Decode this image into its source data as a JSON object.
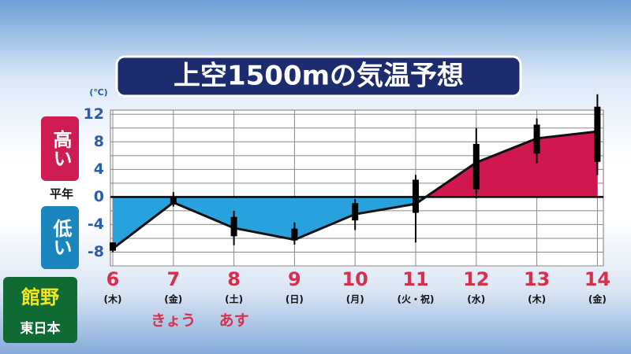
{
  "chart_data": {
    "type": "line",
    "title": "上空1500mの気温予想",
    "y_unit": "(℃)",
    "high_label": "高い",
    "normal_label": "平年",
    "low_label": "低い",
    "station": "館野",
    "region": "東日本",
    "categories": [
      "6",
      "7",
      "8",
      "9",
      "10",
      "11",
      "12",
      "13",
      "14"
    ],
    "weekdays": [
      "(木)",
      "(金)",
      "(土)",
      "(日)",
      "(月)",
      "(火・祝)",
      "(水)",
      "(木)",
      "(金)"
    ],
    "day_notes": [
      null,
      "きょう",
      "あす",
      null,
      null,
      null,
      null,
      null,
      null
    ],
    "values": [
      -7.5,
      -0.8,
      -4.5,
      -6.2,
      -2.5,
      -1,
      5,
      8.5,
      9.5
    ],
    "range_low": [
      -8,
      -1.4,
      -7,
      -6.9,
      -4.8,
      -6.6,
      -0.2,
      4.9,
      3.2
    ],
    "range_high": [
      -6.6,
      0.7,
      -2,
      -3.7,
      -0.3,
      3.2,
      10,
      11.4,
      14.9
    ],
    "box_low": [
      -7.8,
      -1.1,
      -5.7,
      -6.3,
      -3.4,
      -2.3,
      1.1,
      6.3,
      5.1
    ],
    "box_high": [
      -6.6,
      0,
      -2.9,
      -4.6,
      -0.9,
      2.5,
      7.7,
      10.5,
      13.1
    ],
    "above_color": "#d0174f",
    "below_color": "#27a2dc",
    "line_color": "#111111",
    "ylim": [
      -10,
      12.6
    ],
    "yticks": [
      12,
      8,
      4,
      0,
      -4,
      -8
    ],
    "yminor": [
      10,
      6,
      2,
      -2,
      -6,
      -10
    ],
    "grid": true
  }
}
